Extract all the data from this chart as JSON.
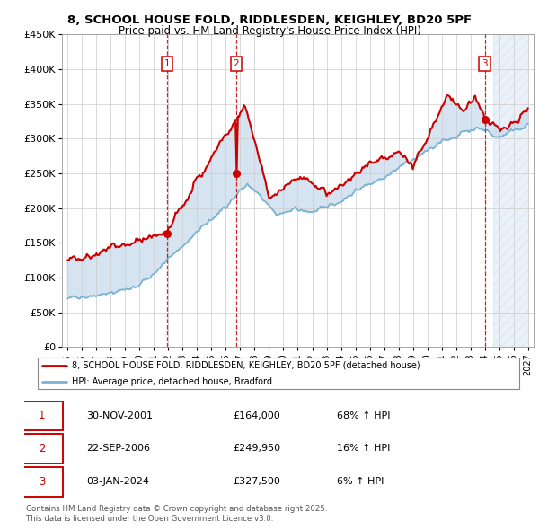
{
  "title": "8, SCHOOL HOUSE FOLD, RIDDLESDEN, KEIGHLEY, BD20 5PF",
  "subtitle": "Price paid vs. HM Land Registry's House Price Index (HPI)",
  "legend_line1": "8, SCHOOL HOUSE FOLD, RIDDLESDEN, KEIGHLEY, BD20 5PF (detached house)",
  "legend_line2": "HPI: Average price, detached house, Bradford",
  "footer1": "Contains HM Land Registry data © Crown copyright and database right 2025.",
  "footer2": "This data is licensed under the Open Government Licence v3.0.",
  "sale_labels": [
    "30-NOV-2001",
    "22-SEP-2006",
    "03-JAN-2024"
  ],
  "sale_prices_str": [
    "£164,000",
    "£249,950",
    "£327,500"
  ],
  "sale_hpi_str": [
    "68% ↑ HPI",
    "16% ↑ HPI",
    "6% ↑ HPI"
  ],
  "sale_dates_num": [
    2001.916,
    2006.722,
    2024.008
  ],
  "sale_prices": [
    164000,
    249950,
    327500
  ],
  "ylim": [
    0,
    450000
  ],
  "yticks": [
    0,
    50000,
    100000,
    150000,
    200000,
    250000,
    300000,
    350000,
    400000,
    450000
  ],
  "ytick_labels": [
    "£0",
    "£50K",
    "£100K",
    "£150K",
    "£200K",
    "£250K",
    "£300K",
    "£350K",
    "£400K",
    "£450K"
  ],
  "color_red": "#cc0000",
  "color_blue": "#7ab3d4",
  "color_shade": "#c5d8ea",
  "grid_color": "#cccccc",
  "bg_color": "#ffffff",
  "hatch_color": "#b8cfe0"
}
